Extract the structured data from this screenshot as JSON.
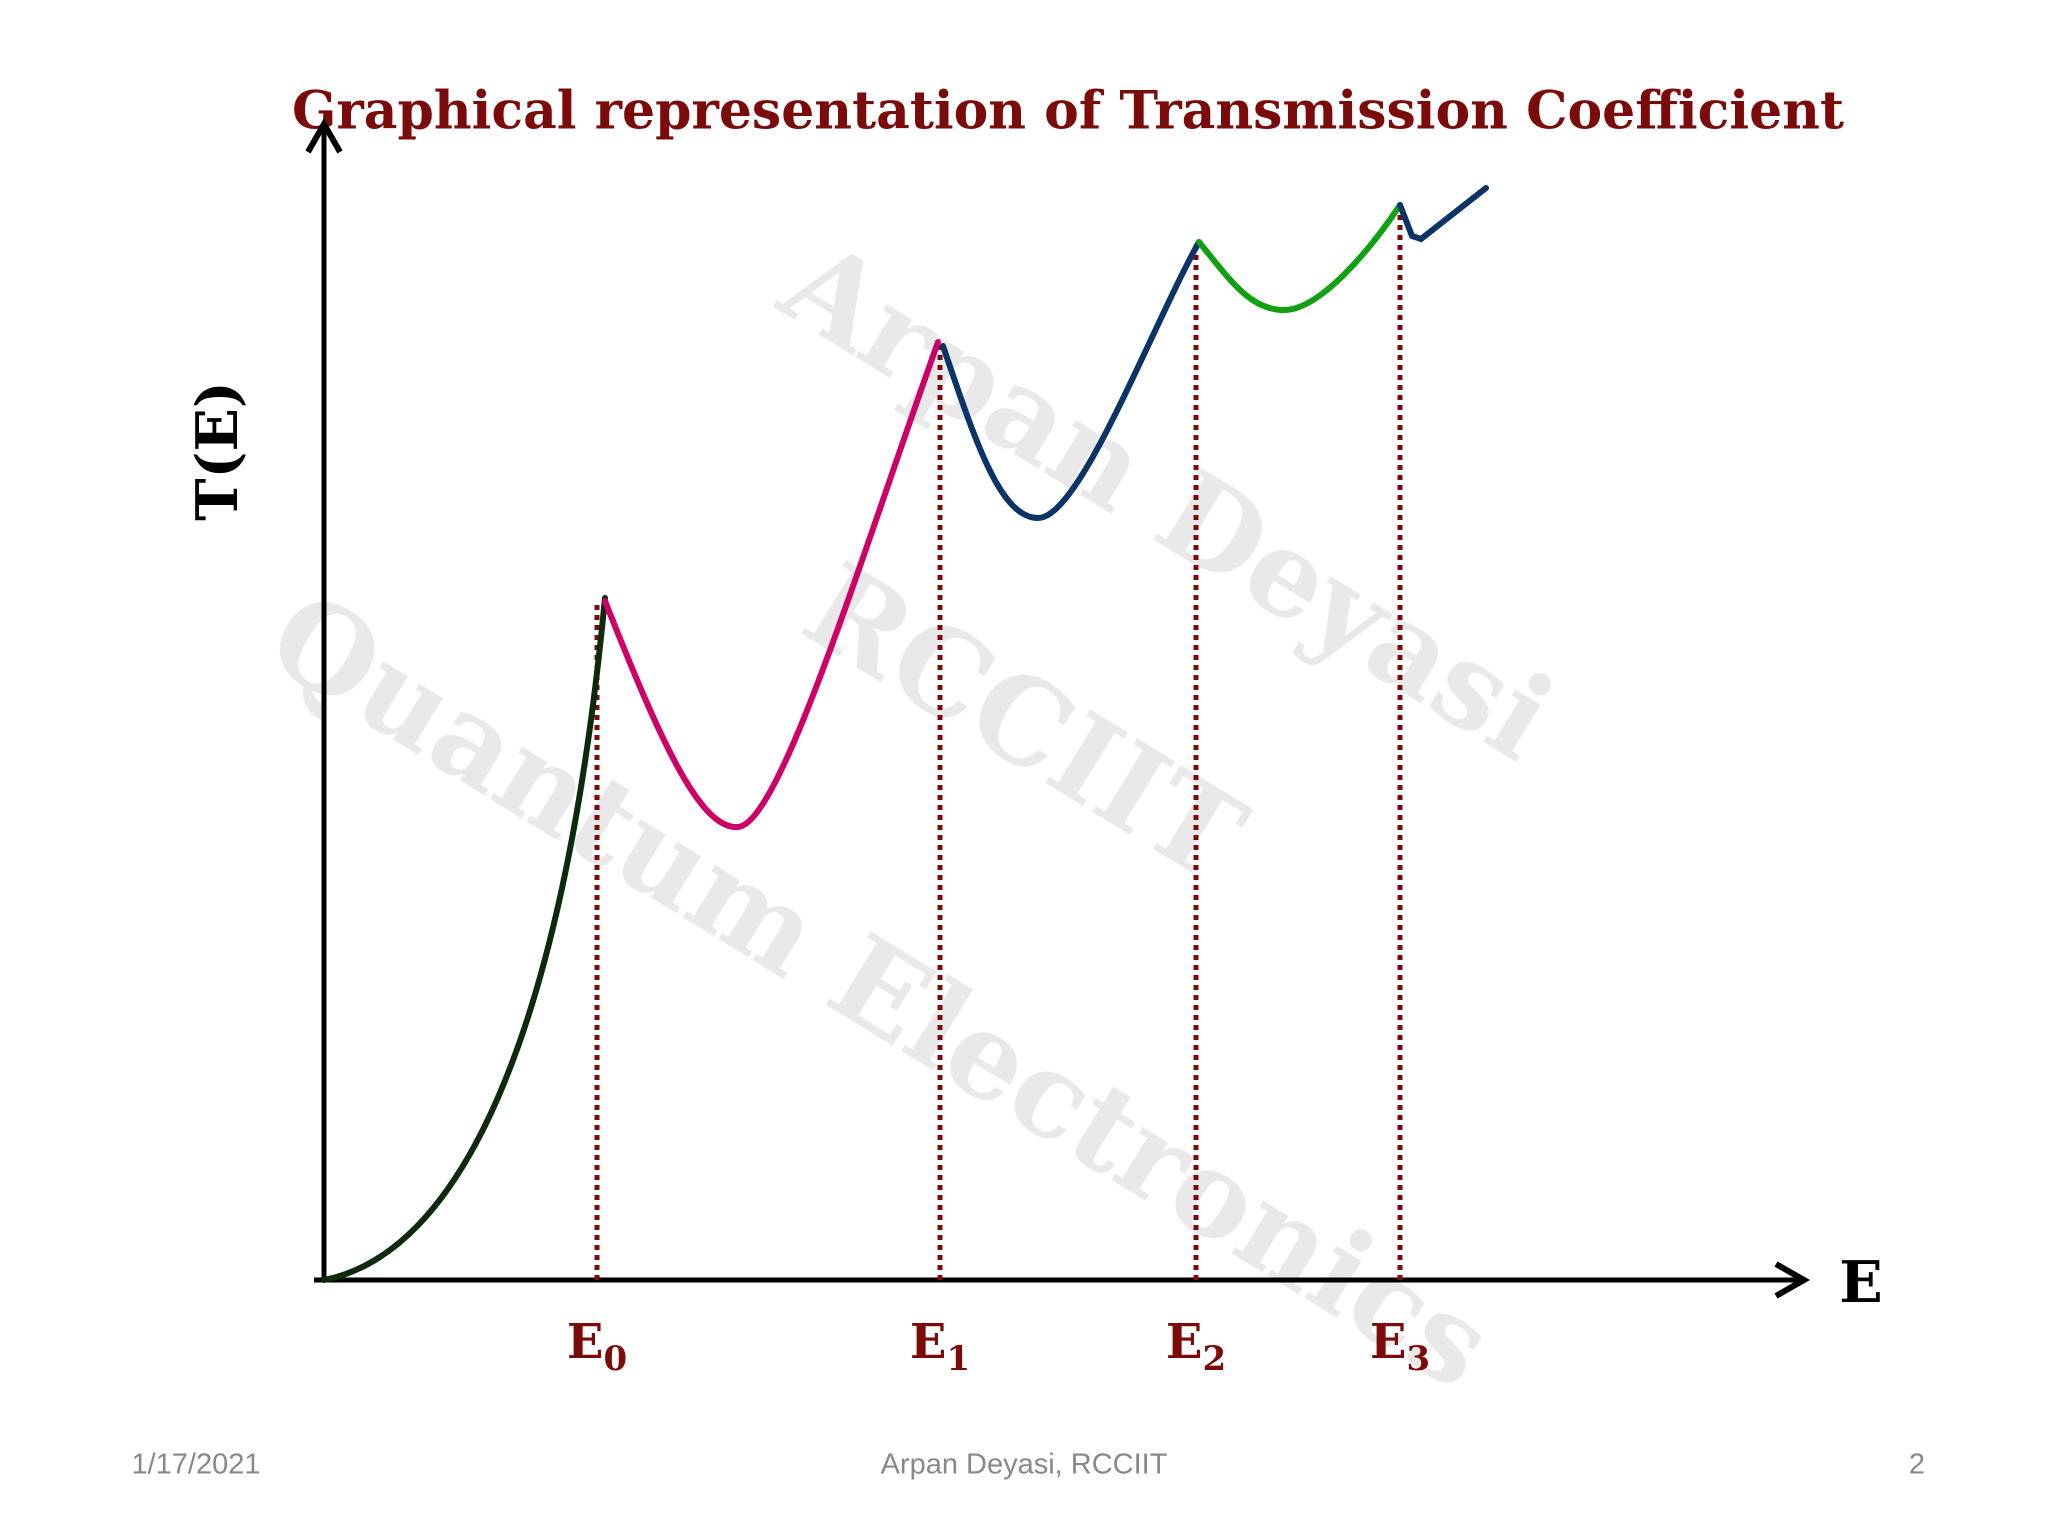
{
  "title": "Graphical representation of Transmission Coefficient",
  "y_axis_label": "T(E)",
  "x_axis_label": "E",
  "markers": [
    {
      "base": "E",
      "sub": "0"
    },
    {
      "base": "E",
      "sub": "1"
    },
    {
      "base": "E",
      "sub": "2"
    },
    {
      "base": "E",
      "sub": "3"
    }
  ],
  "watermark": [
    "Arpan Deyasi",
    "RCCIIT",
    "Quantum Electronics"
  ],
  "footer": {
    "date": "1/17/2021",
    "author": "Arpan Deyasi, RCCIIT",
    "page": "2"
  }
}
